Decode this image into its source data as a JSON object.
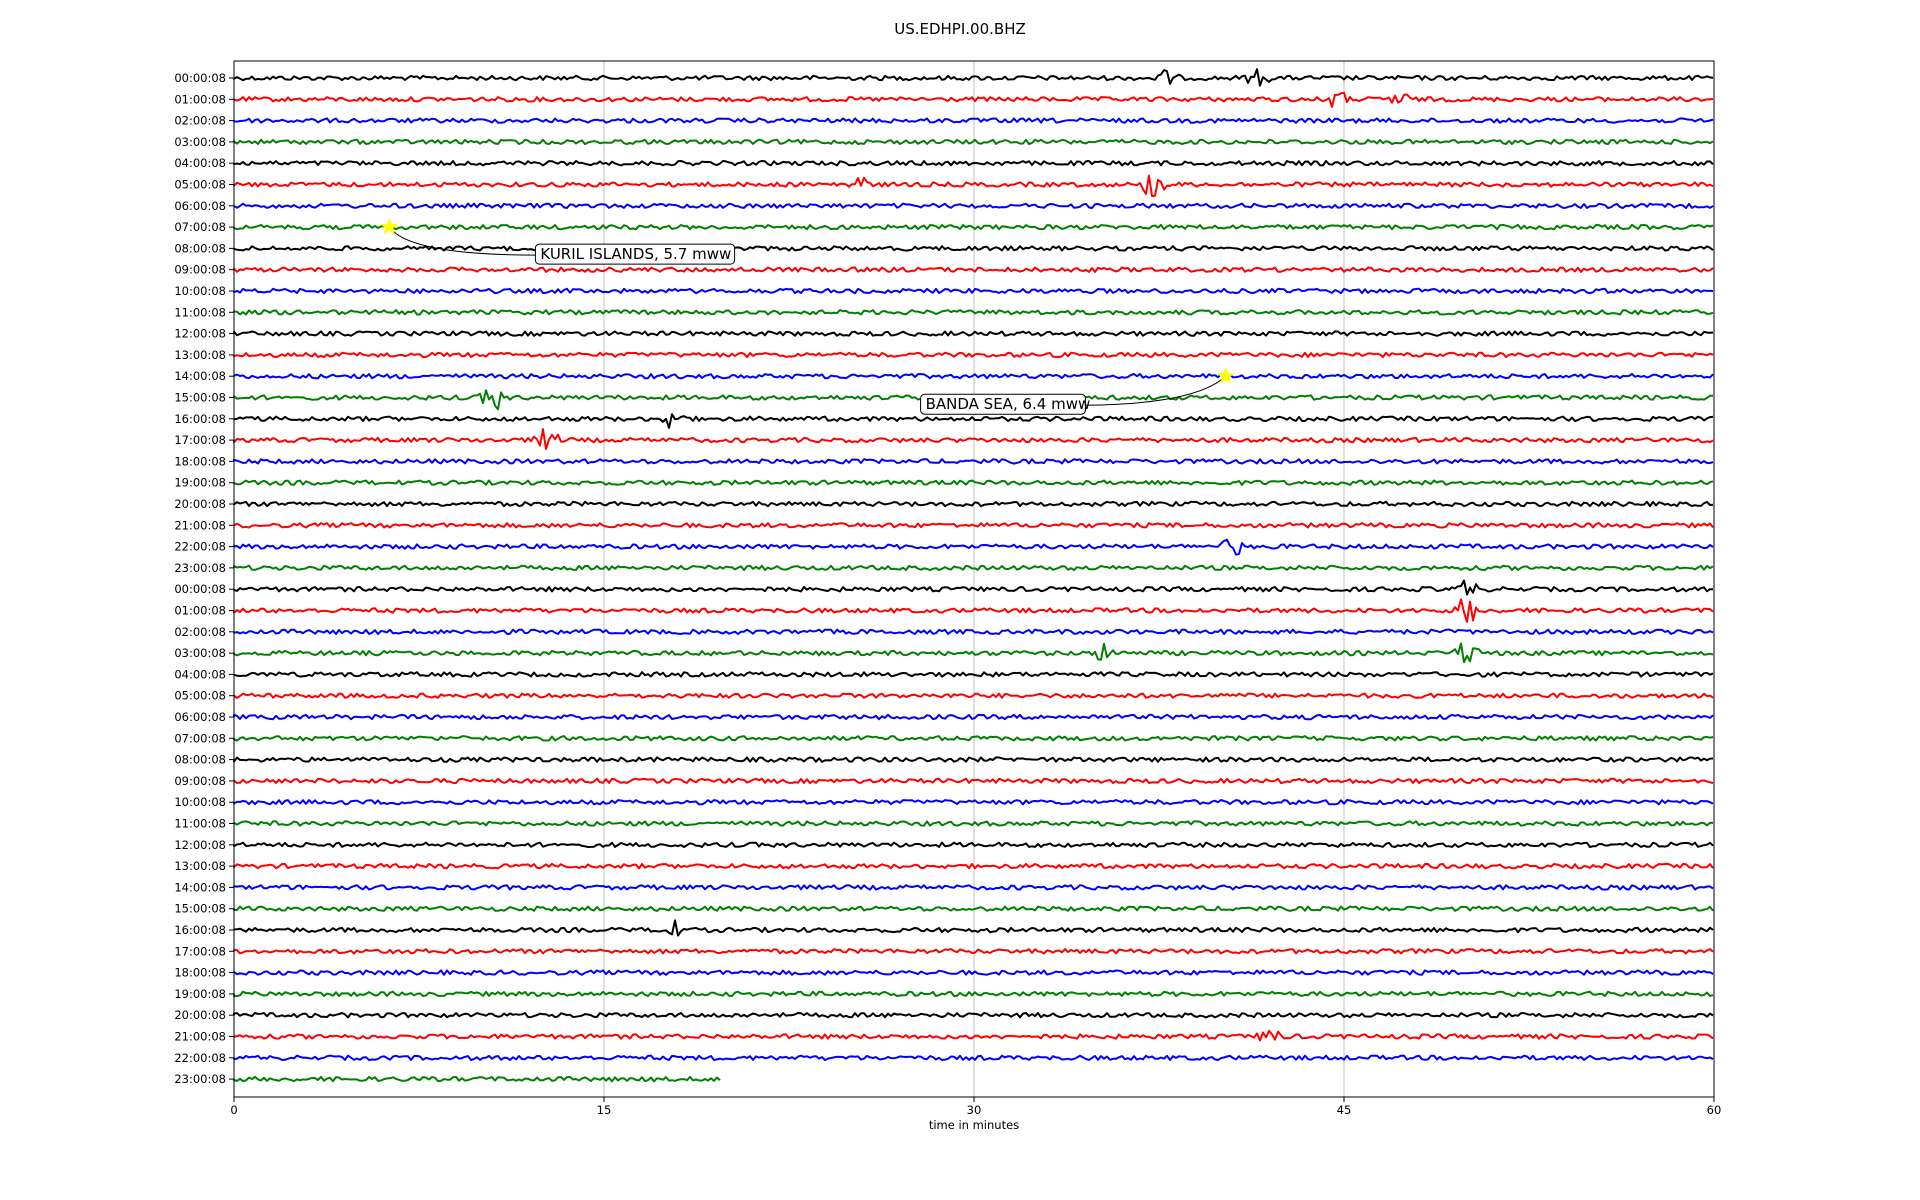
{
  "chart_data": {
    "type": "line",
    "title": "US.EDHPI.00.BHZ",
    "xlabel": "time in minutes",
    "ylabel": "",
    "xlim": [
      0,
      60
    ],
    "xticks": [
      "0",
      "15",
      "30",
      "45",
      "60"
    ],
    "grid": "vertical",
    "colors": [
      "#000000",
      "#ff0000",
      "#0000ff",
      "#008000"
    ],
    "rows": [
      "00:00:08",
      "01:00:08",
      "02:00:08",
      "03:00:08",
      "04:00:08",
      "05:00:08",
      "06:00:08",
      "07:00:08",
      "08:00:08",
      "09:00:08",
      "10:00:08",
      "11:00:08",
      "12:00:08",
      "13:00:08",
      "14:00:08",
      "15:00:08",
      "16:00:08",
      "17:00:08",
      "18:00:08",
      "19:00:08",
      "20:00:08",
      "21:00:08",
      "22:00:08",
      "23:00:08",
      "00:00:08",
      "01:00:08",
      "02:00:08",
      "03:00:08",
      "04:00:08",
      "05:00:08",
      "06:00:08",
      "07:00:08",
      "08:00:08",
      "09:00:08",
      "10:00:08",
      "11:00:08",
      "12:00:08",
      "13:00:08",
      "14:00:08",
      "15:00:08",
      "16:00:08",
      "17:00:08",
      "18:00:08",
      "19:00:08",
      "20:00:08",
      "21:00:08",
      "22:00:08",
      "23:00:08"
    ],
    "last_row_end_minute": 19.8,
    "bursts": [
      {
        "row": 0,
        "minute": 37.8,
        "amp": 0.5
      },
      {
        "row": 0,
        "minute": 41.5,
        "amp": 0.5
      },
      {
        "row": 1,
        "minute": 44.7,
        "amp": 0.6
      },
      {
        "row": 1,
        "minute": 47.2,
        "amp": 0.5
      },
      {
        "row": 5,
        "minute": 37.3,
        "amp": 1.0
      },
      {
        "row": 5,
        "minute": 25.3,
        "amp": 0.5
      },
      {
        "row": 15,
        "minute": 10.5,
        "amp": 1.0
      },
      {
        "row": 16,
        "minute": 17.8,
        "amp": 0.7
      },
      {
        "row": 17,
        "minute": 12.7,
        "amp": 0.8
      },
      {
        "row": 22,
        "minute": 40.5,
        "amp": 0.6
      },
      {
        "row": 24,
        "minute": 50.0,
        "amp": 0.6
      },
      {
        "row": 25,
        "minute": 50.0,
        "amp": 1.0
      },
      {
        "row": 27,
        "minute": 35.3,
        "amp": 0.5
      },
      {
        "row": 27,
        "minute": 50.0,
        "amp": 0.9
      },
      {
        "row": 40,
        "minute": 17.6,
        "amp": 0.9
      },
      {
        "row": 45,
        "minute": 42.0,
        "amp": 0.5
      }
    ],
    "annotations": [
      {
        "text": "KURIL ISLANDS, 5.7 mww",
        "row": 7,
        "minute": 6.3
      },
      {
        "text": "BANDA SEA, 6.4 mww",
        "row": 14,
        "minute": 40.2
      }
    ]
  }
}
